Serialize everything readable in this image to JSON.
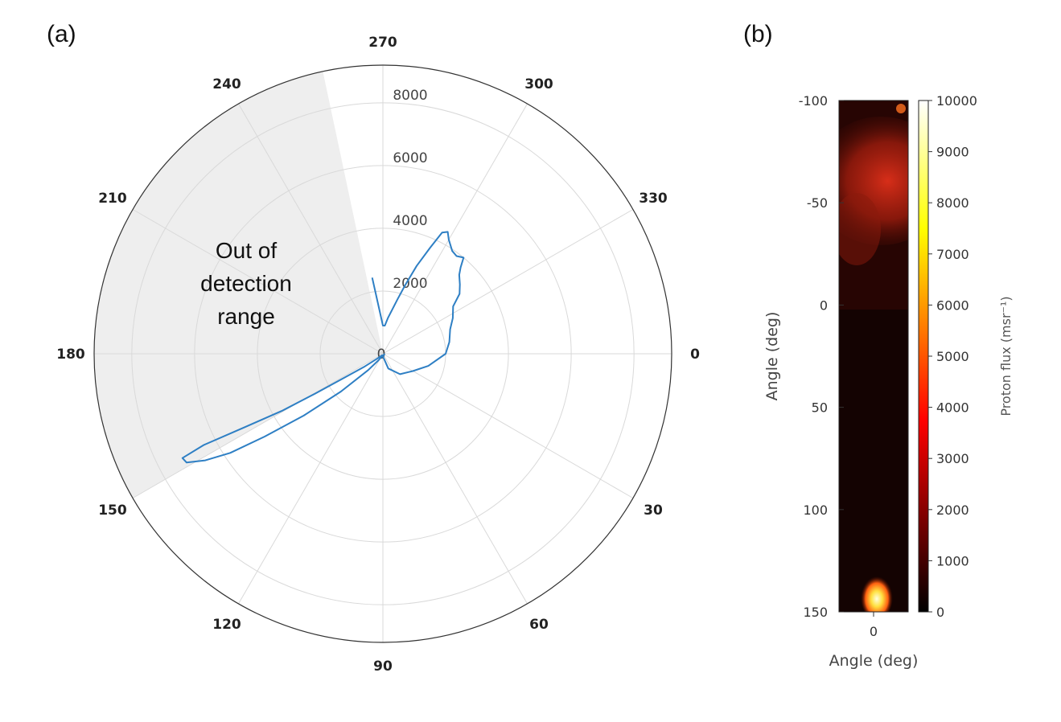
{
  "chart_data": [
    {
      "panel": "(a)",
      "type": "line",
      "coordinate_system": "polar",
      "angular_direction": "clockwise",
      "angular_zero": "right",
      "angular_ticks": [
        "0",
        "30",
        "60",
        "90",
        "120",
        "150",
        "180",
        "210",
        "240",
        "270",
        "300",
        "330"
      ],
      "radial_ticks": [
        "0",
        "2000",
        "4000",
        "6000",
        "8000"
      ],
      "rlim": [
        0,
        9200
      ],
      "grid": true,
      "shaded_sector_deg": [
        150,
        258
      ],
      "annotation": [
        "Out of",
        "detection",
        "range"
      ],
      "series_color": "#2e7fc4",
      "series": [
        {
          "theta_deg": [
            0,
            20,
            40,
            60,
            90,
            120,
            140,
            145,
            148,
            149.5,
            150.5,
            152,
            153,
            152.5,
            151,
            149,
            147,
            145,
            142,
            138,
            132,
            124,
            116,
            104,
            90,
            70,
            50,
            30,
            15,
            0,
            350,
            340,
            333,
            326,
            322,
            318,
            314,
            312,
            310,
            307,
            304,
            300,
            298,
            296,
            294,
            291,
            288,
            285,
            282,
            278,
            274,
            270,
            262
          ],
          "r": [
            60,
            45,
            50,
            50,
            50,
            55,
            250,
            700,
            1400,
            2500,
            3700,
            5000,
            6400,
            7200,
            7150,
            6600,
            5800,
            4600,
            3200,
            1800,
            700,
            250,
            120,
            90,
            80,
            500,
            850,
            1100,
            1500,
            2000,
            2150,
            2280,
            2500,
            2700,
            3100,
            3300,
            3500,
            3700,
            4000,
            3900,
            3950,
            4200,
            4400,
            4300,
            3700,
            3000,
            2300,
            1800,
            1450,
            1150,
            900,
            900,
            2450
          ]
        }
      ]
    },
    {
      "panel": "(b)",
      "type": "heatmap",
      "xlabel": "Angle (deg)",
      "ylabel": "Angle (deg)",
      "x_ticks": [
        "0"
      ],
      "y_ticks": [
        "-100",
        "-50",
        "0",
        "50",
        "100",
        "150"
      ],
      "ylim": [
        -100,
        150
      ],
      "colorbar": {
        "label": "Proton flux (msr⁻¹)",
        "range": [
          0,
          10000
        ],
        "ticks": [
          "0",
          "1000",
          "2000",
          "3000",
          "4000",
          "5000",
          "6000",
          "7000",
          "8000",
          "9000",
          "10000"
        ],
        "colormap": "hot"
      },
      "features": [
        {
          "kind": "diffuse-glow",
          "y_center_deg": -65,
          "peak_flux": 3500
        },
        {
          "kind": "hot-spot",
          "x_deg": 0,
          "y_center_deg": 142,
          "peak_flux": 9500
        }
      ]
    }
  ]
}
